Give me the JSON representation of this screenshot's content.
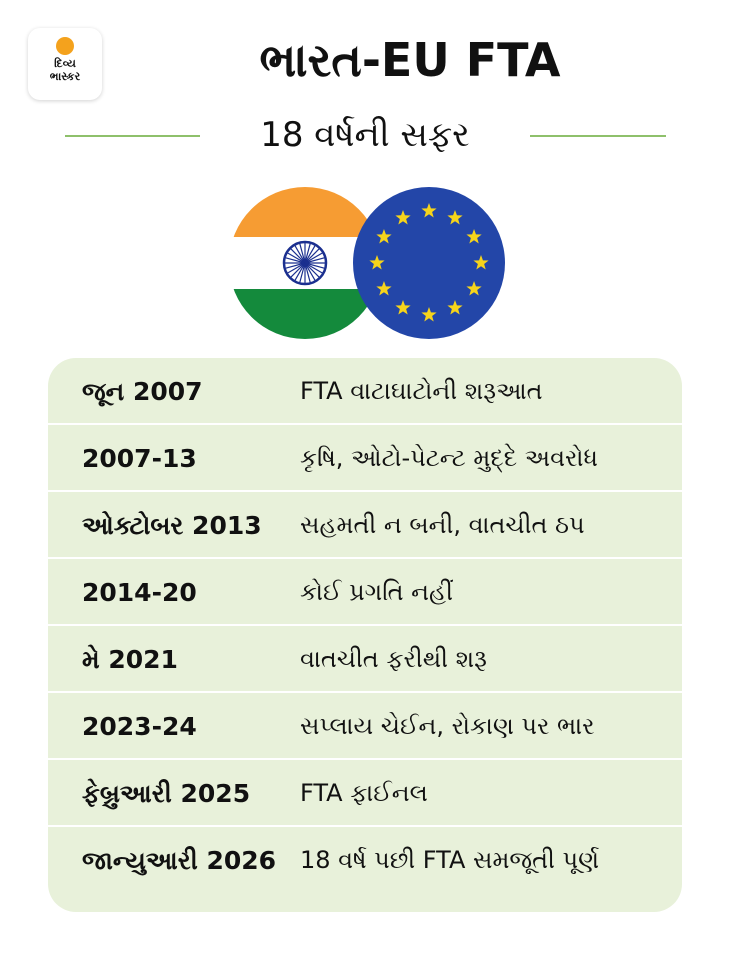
{
  "brand": {
    "line1": "દિવ્ય",
    "line2": "ભાસ્કર"
  },
  "title": "ભારત-EU FTA",
  "subtitle": "18 વર્ષની સફર",
  "colors": {
    "saffron": "#f69c33",
    "green": "#148a3c",
    "chakra": "#1b2f8f",
    "eu_blue": "#2346a8",
    "eu_star": "#f6d41b",
    "panel": "#e8f1da",
    "rule": "#8ec06b"
  },
  "flags": [
    {
      "name": "india-flag-icon"
    },
    {
      "name": "eu-flag-icon"
    }
  ],
  "timeline": [
    {
      "date": "જૂન 2007",
      "event": "FTA વાટાઘાટોની શરૂઆત"
    },
    {
      "date": "2007-13",
      "event": "કૃષિ, ઓટો-પેટન્ટ મુદ્દે અવરોધ"
    },
    {
      "date": "ઓક્ટોબર 2013",
      "event": "સહમતી ન બની, વાતચીત ઠપ"
    },
    {
      "date": "2014-20",
      "event": "કોઈ પ્રગતિ નહીં"
    },
    {
      "date": "મે 2021",
      "event": "વાતચીત ફરીથી શરૂ"
    },
    {
      "date": "2023-24",
      "event": "સપ્લાય ચેઈન, રોકાણ પર ભાર"
    },
    {
      "date": "ફેબ્રુઆરી 2025",
      "event": "FTA ફાઈનલ"
    },
    {
      "date": "જાન્યુઆરી 2026",
      "event": "18 વર્ષ પછી FTA સમજૂતી પૂર્ણ"
    }
  ]
}
